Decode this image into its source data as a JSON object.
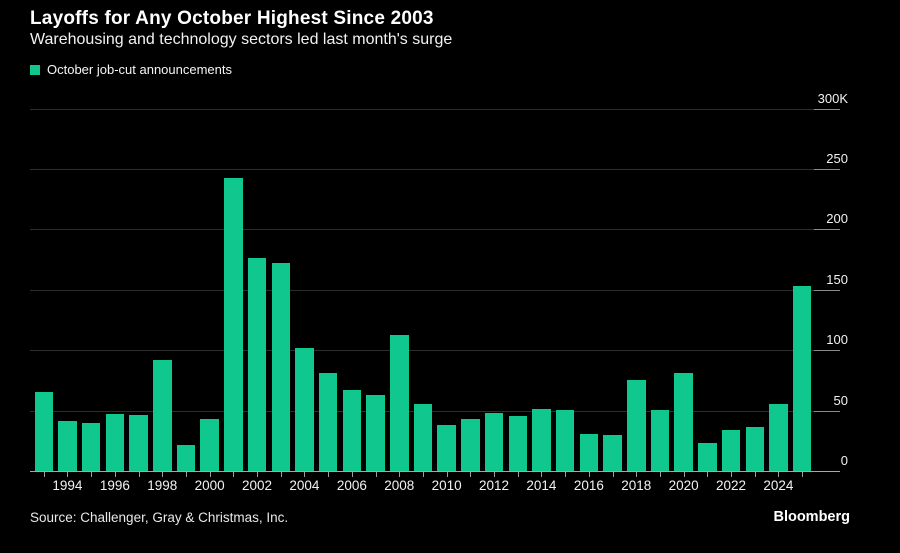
{
  "header": {
    "title": "Layoffs for Any October Highest Since 2003",
    "subtitle": "Warehousing and technology sectors led last month's surge"
  },
  "legend": {
    "label": "October job-cut announcements",
    "swatch_color": "#10C78E"
  },
  "chart_data": {
    "type": "bar",
    "title": "Layoffs for Any October Highest Since 2003",
    "subtitle": "Warehousing and technology sectors led last month's surge",
    "legend": [
      "October job-cut announcements"
    ],
    "legend_position": "top-left",
    "unit": "thousands of announced job cuts",
    "categories": [
      1993,
      1994,
      1995,
      1996,
      1997,
      1998,
      1999,
      2000,
      2001,
      2002,
      2003,
      2004,
      2005,
      2006,
      2007,
      2008,
      2009,
      2010,
      2011,
      2012,
      2013,
      2014,
      2015,
      2016,
      2017,
      2018,
      2019,
      2020,
      2021,
      2022,
      2023,
      2024,
      2025
    ],
    "values": [
      65.5,
      41.4,
      40.0,
      47.2,
      46.0,
      91.5,
      21.5,
      43.0,
      242.2,
      176.0,
      171.9,
      101.8,
      81.3,
      67.4,
      63.1,
      112.9,
      55.7,
      38.0,
      42.8,
      47.7,
      45.7,
      51.2,
      50.5,
      30.7,
      29.8,
      75.6,
      50.3,
      80.7,
      22.8,
      33.8,
      36.8,
      55.6,
      153.1
    ],
    "ylim": [
      0,
      300
    ],
    "yticks": [
      0,
      50,
      100,
      150,
      200,
      250,
      300
    ],
    "ytick_labels": [
      "0",
      "50",
      "100",
      "150",
      "200",
      "250",
      "300K"
    ],
    "xtick_labels": [
      1994,
      1996,
      1998,
      2000,
      2002,
      2004,
      2006,
      2008,
      2010,
      2012,
      2014,
      2016,
      2018,
      2020,
      2022,
      2024
    ],
    "y_axis_side": "right",
    "grid": true,
    "bar_color": "#10C78E",
    "background_color": "#000000"
  },
  "footer": {
    "source": "Source: Challenger, Gray & Christmas, Inc.",
    "brand": "Bloomberg"
  }
}
